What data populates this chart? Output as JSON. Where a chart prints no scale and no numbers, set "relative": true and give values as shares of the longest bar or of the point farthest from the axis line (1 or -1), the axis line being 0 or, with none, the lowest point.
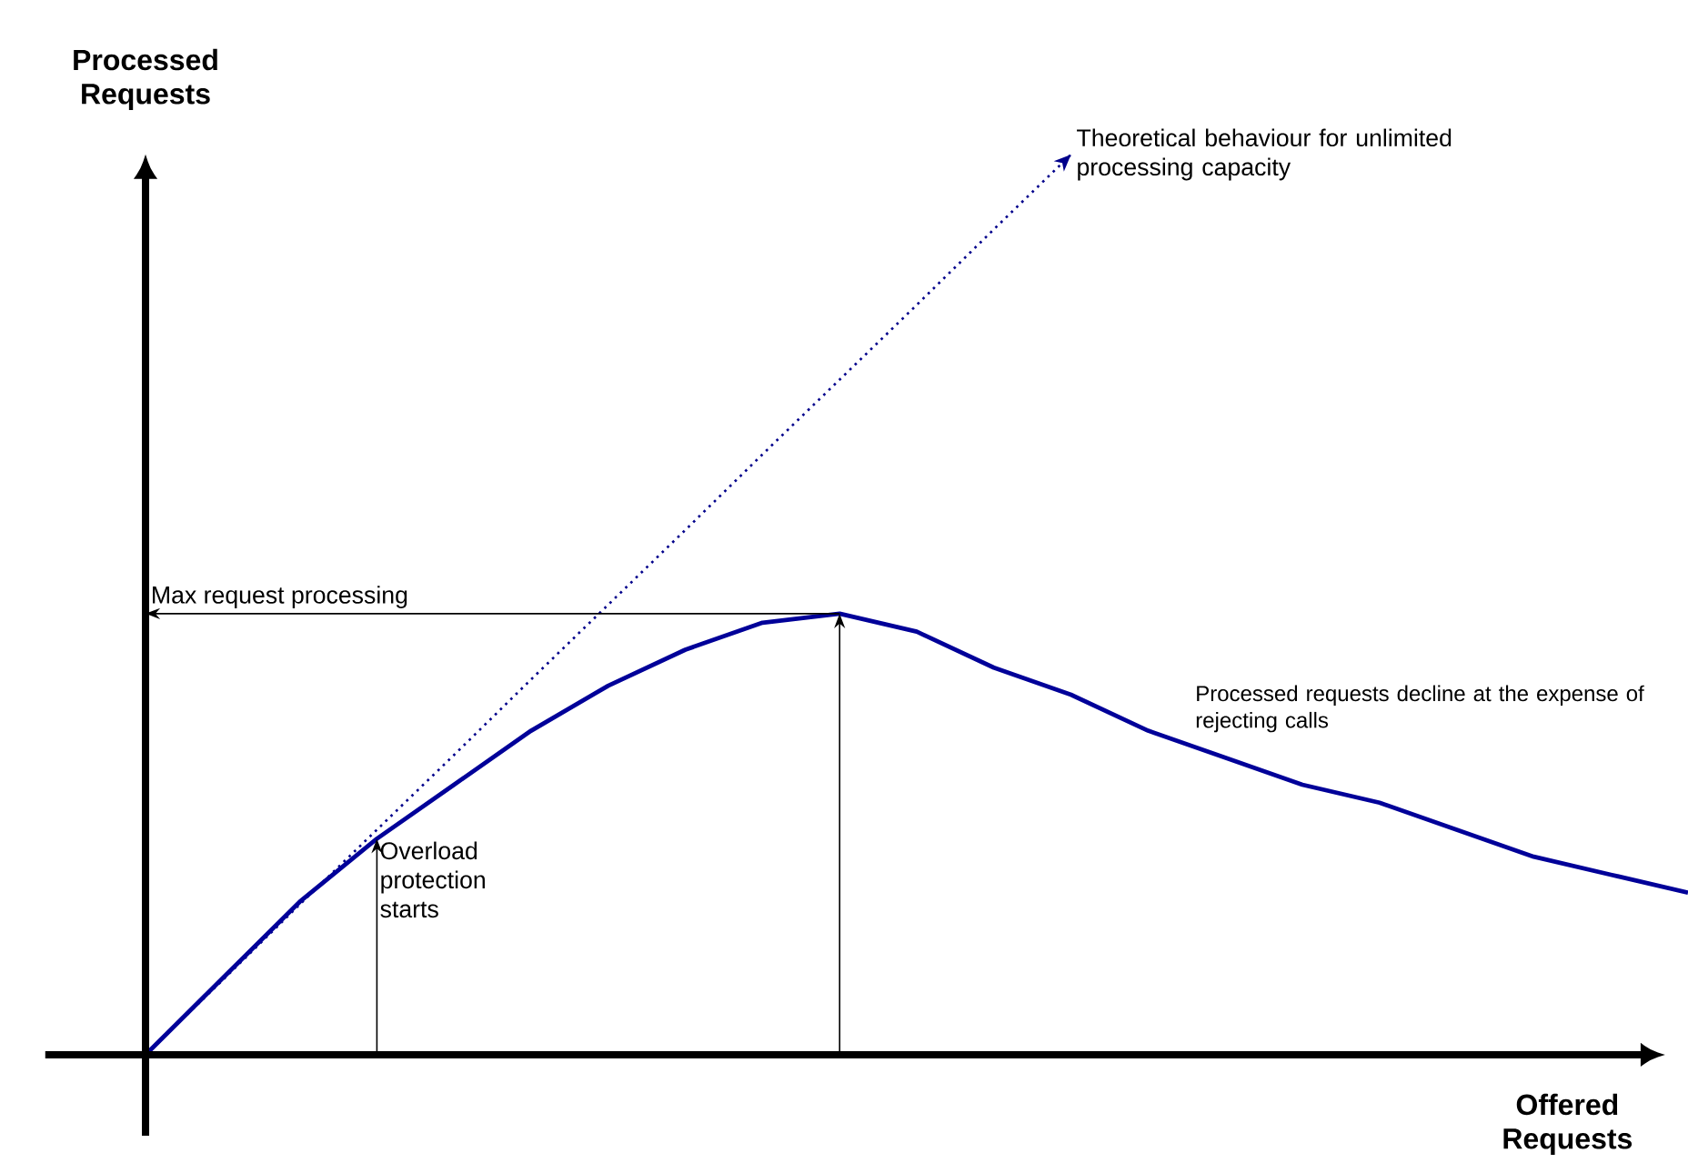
{
  "chart_data": {
    "type": "line",
    "relative": true,
    "xlabel": "Offered Requests",
    "ylabel": "Processed Requests",
    "categories": [
      null,
      null,
      null,
      null,
      null,
      null,
      null,
      null,
      null,
      null,
      null,
      null,
      null,
      null,
      null,
      null,
      null,
      null,
      null,
      null,
      null
    ],
    "series": [
      {
        "color": "#00008b",
        "line_style": "dotted",
        "values": [
          0,
          0.083,
          0.167,
          0.25,
          0.333,
          0.417,
          0.5,
          0.583,
          0.667,
          0.75,
          0.833,
          0.917,
          1.0,
          null,
          null,
          null,
          null,
          null,
          null,
          null,
          null
        ]
      },
      {
        "color": "#000099",
        "line_style": "solid",
        "values": [
          0,
          0.085,
          0.17,
          0.24,
          0.3,
          0.36,
          0.41,
          0.45,
          0.48,
          0.49,
          0.47,
          0.43,
          0.4,
          0.36,
          0.33,
          0.3,
          0.28,
          0.25,
          0.22,
          0.2,
          0.18
        ]
      }
    ],
    "annotations": [
      "Max request processing",
      "Overload protection starts",
      "Theoretical behaviour for unlimited processing capacity",
      "Processed requests decline at the expense of rejecting calls"
    ]
  }
}
